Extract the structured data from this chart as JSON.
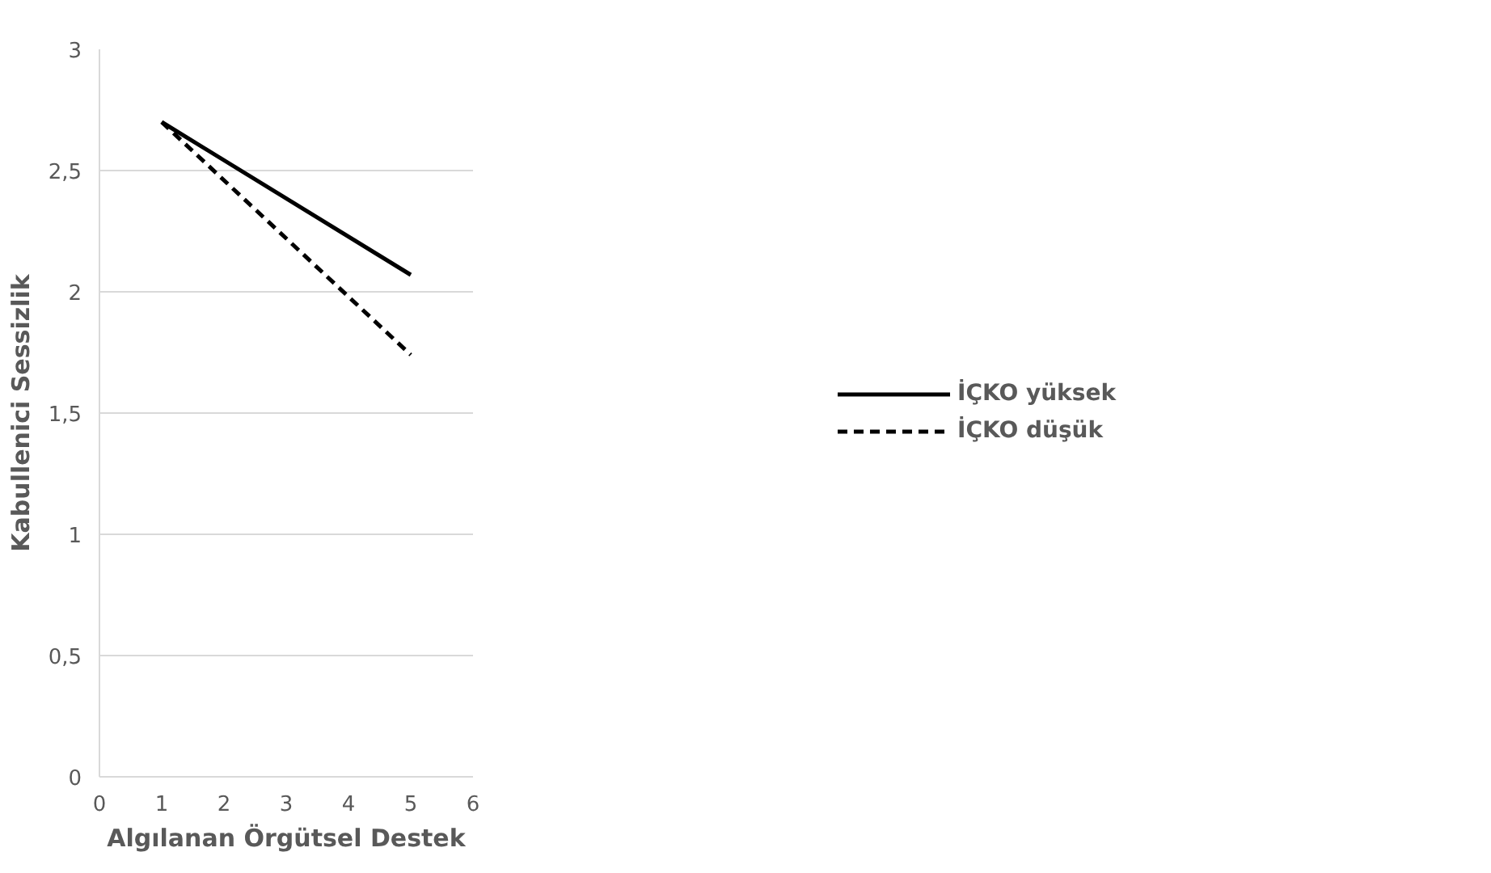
{
  "chart_data": {
    "type": "line",
    "xlabel": "Algılanan Örgütsel Destek",
    "ylabel": "Kabullenici Sessizlik",
    "x": [
      1,
      5
    ],
    "series": [
      {
        "name": "İÇKO yüksek",
        "color": "#000000",
        "values": [
          2.7,
          2.07
        ],
        "line_style": "solid"
      },
      {
        "name": "İÇKO düşük",
        "color": "#000000",
        "values": [
          2.7,
          1.74
        ],
        "line_style": "dashed"
      }
    ],
    "xlim": [
      0,
      6
    ],
    "xticks": [
      0,
      1,
      2,
      3,
      4,
      5,
      6
    ],
    "ylim": [
      0,
      3
    ],
    "yticks": [
      0,
      {
        "value": 0.5,
        "label": "0,5"
      },
      1,
      {
        "value": 1.5,
        "label": "1,5"
      },
      2,
      {
        "value": 2.5,
        "label": "2,5"
      },
      3
    ],
    "grid": "y",
    "legend": "right",
    "marker": "none"
  }
}
